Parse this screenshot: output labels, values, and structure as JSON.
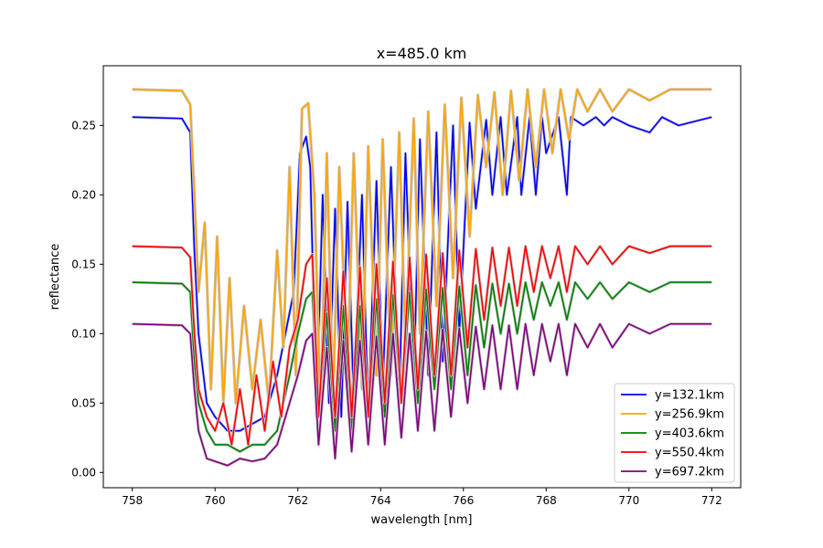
{
  "chart_data": {
    "type": "line",
    "title": "x=485.0 km",
    "xlabel": "wavelength [nm]",
    "ylabel": "reflectance",
    "xlim": [
      757.3,
      772.7
    ],
    "ylim": [
      -0.011,
      0.293
    ],
    "xticks": [
      758,
      760,
      762,
      764,
      766,
      768,
      770,
      772
    ],
    "yticks": [
      0.0,
      0.05,
      0.1,
      0.15,
      0.2,
      0.25
    ],
    "xtick_labels": [
      "758",
      "760",
      "762",
      "764",
      "766",
      "768",
      "770",
      "772"
    ],
    "ytick_labels": [
      "0.00",
      "0.05",
      "0.10",
      "0.15",
      "0.20",
      "0.25"
    ],
    "grid": false,
    "legend_position": "lower right",
    "series": [
      {
        "name": "y=132.1km",
        "color": "#0000ff",
        "continuum": 0.256,
        "x": [
          758.0,
          759.2,
          759.4,
          759.5,
          759.6,
          759.8,
          760.0,
          760.3,
          760.6,
          760.9,
          761.2,
          761.5,
          761.7,
          761.9,
          762.05,
          762.2,
          762.3,
          762.45,
          762.6,
          762.75,
          762.9,
          763.05,
          763.2,
          763.35,
          763.55,
          763.7,
          763.9,
          764.05,
          764.25,
          764.45,
          764.6,
          764.8,
          764.95,
          765.15,
          765.35,
          765.5,
          765.75,
          765.9,
          766.15,
          766.3,
          766.55,
          766.7,
          766.9,
          767.05,
          767.3,
          767.4,
          767.6,
          767.75,
          767.9,
          768.0,
          768.3,
          768.5,
          768.6,
          768.9,
          769.2,
          769.4,
          769.6,
          770.0,
          770.5,
          770.8,
          771.2,
          772.0
        ],
        "y": [
          0.256,
          0.255,
          0.245,
          0.16,
          0.1,
          0.05,
          0.04,
          0.03,
          0.03,
          0.035,
          0.04,
          0.07,
          0.1,
          0.13,
          0.23,
          0.242,
          0.22,
          0.04,
          0.2,
          0.05,
          0.19,
          0.04,
          0.195,
          0.05,
          0.2,
          0.04,
          0.21,
          0.06,
          0.22,
          0.05,
          0.23,
          0.06,
          0.24,
          0.07,
          0.245,
          0.08,
          0.25,
          0.1,
          0.252,
          0.19,
          0.254,
          0.2,
          0.256,
          0.2,
          0.256,
          0.2,
          0.256,
          0.2,
          0.256,
          0.23,
          0.256,
          0.2,
          0.256,
          0.25,
          0.256,
          0.25,
          0.256,
          0.25,
          0.245,
          0.256,
          0.25,
          0.256
        ]
      },
      {
        "name": "y=256.9km",
        "color": "#ffa500",
        "continuum": 0.276,
        "x": [
          758.0,
          759.2,
          759.4,
          759.5,
          759.6,
          759.75,
          759.9,
          760.05,
          760.2,
          760.35,
          760.5,
          760.7,
          760.9,
          761.1,
          761.3,
          761.5,
          761.65,
          761.8,
          761.95,
          762.1,
          762.25,
          762.4,
          762.55,
          762.7,
          762.85,
          763.0,
          763.2,
          763.35,
          763.55,
          763.7,
          763.9,
          764.05,
          764.25,
          764.45,
          764.6,
          764.8,
          764.95,
          765.15,
          765.35,
          765.55,
          765.75,
          765.95,
          766.15,
          766.35,
          766.55,
          766.75,
          766.95,
          767.15,
          767.35,
          767.55,
          767.75,
          767.95,
          768.15,
          768.35,
          768.55,
          768.75,
          769.0,
          769.3,
          769.6,
          770.0,
          770.5,
          771.0,
          772.0
        ],
        "y": [
          0.276,
          0.275,
          0.265,
          0.2,
          0.13,
          0.18,
          0.06,
          0.17,
          0.05,
          0.14,
          0.05,
          0.12,
          0.06,
          0.11,
          0.05,
          0.16,
          0.09,
          0.22,
          0.07,
          0.262,
          0.266,
          0.2,
          0.04,
          0.23,
          0.05,
          0.22,
          0.07,
          0.23,
          0.06,
          0.235,
          0.07,
          0.24,
          0.07,
          0.245,
          0.09,
          0.255,
          0.1,
          0.26,
          0.12,
          0.265,
          0.14,
          0.27,
          0.17,
          0.272,
          0.22,
          0.274,
          0.2,
          0.275,
          0.21,
          0.276,
          0.22,
          0.276,
          0.23,
          0.276,
          0.24,
          0.276,
          0.26,
          0.276,
          0.26,
          0.276,
          0.268,
          0.276,
          0.276
        ]
      },
      {
        "name": "y=403.6km",
        "color": "#008000",
        "continuum": 0.137,
        "x": [
          758.0,
          759.2,
          759.4,
          759.5,
          759.6,
          759.8,
          760.0,
          760.3,
          760.6,
          760.9,
          761.2,
          761.5,
          761.8,
          762.0,
          762.2,
          762.35,
          762.5,
          762.7,
          762.9,
          763.1,
          763.3,
          763.5,
          763.7,
          763.9,
          764.1,
          764.3,
          764.5,
          764.7,
          764.9,
          765.1,
          765.3,
          765.5,
          765.7,
          765.9,
          766.1,
          766.3,
          766.5,
          766.7,
          766.9,
          767.1,
          767.3,
          767.5,
          767.7,
          767.9,
          768.1,
          768.3,
          768.5,
          768.7,
          769.0,
          769.3,
          769.6,
          770.0,
          770.5,
          771.0,
          772.0
        ],
        "y": [
          0.137,
          0.136,
          0.13,
          0.08,
          0.05,
          0.03,
          0.02,
          0.02,
          0.015,
          0.02,
          0.02,
          0.03,
          0.07,
          0.1,
          0.125,
          0.13,
          0.04,
          0.115,
          0.03,
          0.12,
          0.03,
          0.12,
          0.04,
          0.125,
          0.04,
          0.128,
          0.05,
          0.13,
          0.05,
          0.132,
          0.06,
          0.133,
          0.06,
          0.134,
          0.07,
          0.135,
          0.09,
          0.136,
          0.1,
          0.136,
          0.1,
          0.137,
          0.11,
          0.137,
          0.12,
          0.137,
          0.11,
          0.137,
          0.125,
          0.137,
          0.125,
          0.137,
          0.13,
          0.137,
          0.137
        ]
      },
      {
        "name": "y=550.4km",
        "color": "#ff0000",
        "continuum": 0.163,
        "x": [
          758.0,
          759.2,
          759.4,
          759.5,
          759.6,
          759.8,
          760.0,
          760.2,
          760.4,
          760.6,
          760.8,
          761.0,
          761.2,
          761.4,
          761.6,
          761.8,
          762.0,
          762.2,
          762.35,
          762.5,
          762.7,
          762.9,
          763.1,
          763.3,
          763.5,
          763.7,
          763.9,
          764.1,
          764.3,
          764.5,
          764.7,
          764.9,
          765.1,
          765.3,
          765.5,
          765.7,
          765.9,
          766.1,
          766.3,
          766.5,
          766.7,
          766.9,
          767.1,
          767.3,
          767.5,
          767.7,
          767.9,
          768.1,
          768.3,
          768.5,
          768.7,
          769.0,
          769.3,
          769.6,
          770.0,
          770.5,
          771.0,
          772.0
        ],
        "y": [
          0.163,
          0.162,
          0.155,
          0.1,
          0.06,
          0.04,
          0.03,
          0.05,
          0.02,
          0.06,
          0.02,
          0.07,
          0.03,
          0.08,
          0.04,
          0.09,
          0.11,
          0.15,
          0.157,
          0.04,
          0.14,
          0.04,
          0.145,
          0.04,
          0.148,
          0.04,
          0.15,
          0.05,
          0.152,
          0.05,
          0.155,
          0.06,
          0.157,
          0.07,
          0.158,
          0.07,
          0.16,
          0.09,
          0.161,
          0.11,
          0.162,
          0.12,
          0.162,
          0.12,
          0.163,
          0.13,
          0.163,
          0.14,
          0.163,
          0.13,
          0.163,
          0.15,
          0.163,
          0.15,
          0.163,
          0.158,
          0.163,
          0.163
        ]
      },
      {
        "name": "y=697.2km",
        "color": "#800080",
        "continuum": 0.107,
        "x": [
          758.0,
          759.2,
          759.4,
          759.5,
          759.6,
          759.8,
          760.0,
          760.3,
          760.6,
          760.9,
          761.2,
          761.5,
          761.8,
          762.0,
          762.2,
          762.35,
          762.5,
          762.7,
          762.9,
          763.1,
          763.3,
          763.5,
          763.7,
          763.9,
          764.1,
          764.3,
          764.5,
          764.7,
          764.9,
          765.1,
          765.3,
          765.5,
          765.7,
          765.9,
          766.1,
          766.3,
          766.5,
          766.7,
          766.9,
          767.1,
          767.3,
          767.5,
          767.7,
          767.9,
          768.1,
          768.3,
          768.5,
          768.7,
          769.0,
          769.3,
          769.6,
          770.0,
          770.5,
          771.0,
          772.0
        ],
        "y": [
          0.107,
          0.106,
          0.1,
          0.06,
          0.03,
          0.01,
          0.008,
          0.005,
          0.01,
          0.008,
          0.01,
          0.02,
          0.05,
          0.07,
          0.095,
          0.1,
          0.02,
          0.09,
          0.01,
          0.095,
          0.015,
          0.095,
          0.02,
          0.098,
          0.02,
          0.1,
          0.025,
          0.1,
          0.03,
          0.102,
          0.03,
          0.103,
          0.04,
          0.104,
          0.05,
          0.105,
          0.06,
          0.106,
          0.06,
          0.106,
          0.06,
          0.107,
          0.07,
          0.107,
          0.08,
          0.107,
          0.07,
          0.107,
          0.09,
          0.107,
          0.09,
          0.107,
          0.1,
          0.107,
          0.107
        ]
      }
    ]
  }
}
